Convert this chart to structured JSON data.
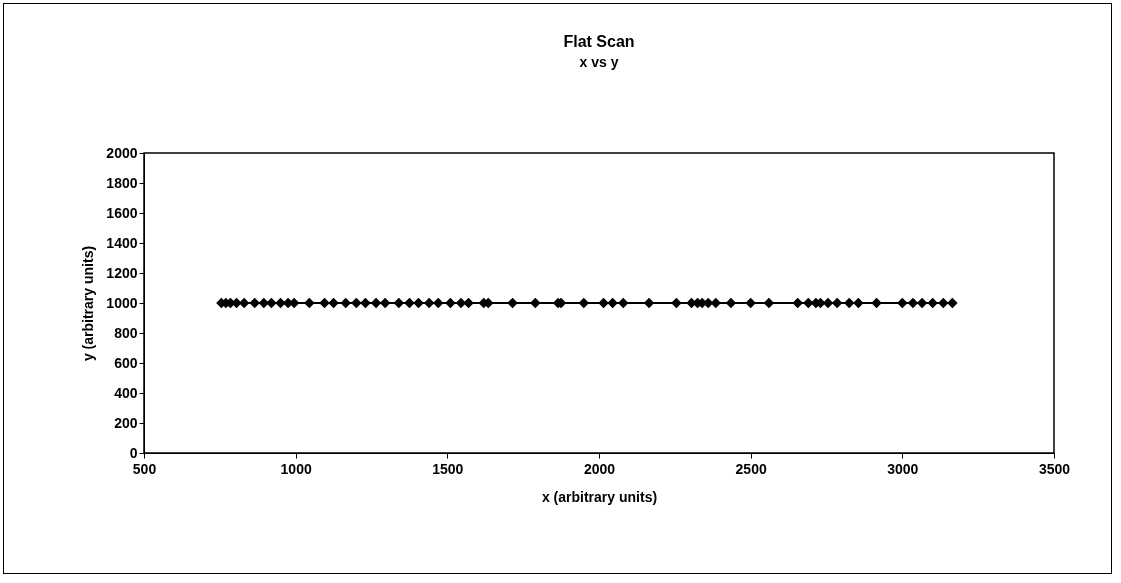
{
  "chart_data": {
    "type": "line",
    "title": "Flat Scan",
    "subtitle": "x vs y",
    "xlabel": "x (arbitrary units)",
    "ylabel": "y (arbitrary units)",
    "marker": "diamond",
    "grid": false,
    "legend": false,
    "xlim": [
      500,
      3500
    ],
    "xticks": [
      500,
      1000,
      1500,
      2000,
      2500,
      3000,
      3500
    ],
    "ylim": [
      0,
      2000
    ],
    "yticks": [
      0,
      200,
      400,
      600,
      800,
      1000,
      1200,
      1400,
      1600,
      1800,
      2000
    ],
    "series": [
      {
        "color": "#000000",
        "x": [
          755,
          770,
          785,
          805,
          830,
          865,
          895,
          920,
          950,
          975,
          995,
          1045,
          1095,
          1125,
          1165,
          1200,
          1230,
          1265,
          1295,
          1340,
          1375,
          1405,
          1440,
          1470,
          1510,
          1545,
          1570,
          1620,
          1635,
          1715,
          1790,
          1865,
          1875,
          1950,
          2015,
          2045,
          2080,
          2165,
          2255,
          2305,
          2325,
          2340,
          2360,
          2385,
          2435,
          2500,
          2560,
          2655,
          2690,
          2715,
          2730,
          2755,
          2785,
          2825,
          2855,
          2915,
          3000,
          3035,
          3065,
          3100,
          3135,
          3165
        ],
        "values": [
          1000,
          1000,
          1000,
          1000,
          1000,
          1000,
          1000,
          1000,
          1000,
          1000,
          1000,
          1000,
          1000,
          1000,
          1000,
          1000,
          1000,
          1000,
          1000,
          1000,
          1000,
          1000,
          1000,
          1000,
          1000,
          1000,
          1000,
          1000,
          1000,
          1000,
          1000,
          1000,
          1000,
          1000,
          1000,
          1000,
          1000,
          1000,
          1000,
          1000,
          1000,
          1000,
          1000,
          1000,
          1000,
          1000,
          1000,
          1000,
          1000,
          1000,
          1000,
          1000,
          1000,
          1000,
          1000,
          1000,
          1000,
          1000,
          1000,
          1000,
          1000,
          1000
        ]
      }
    ]
  }
}
